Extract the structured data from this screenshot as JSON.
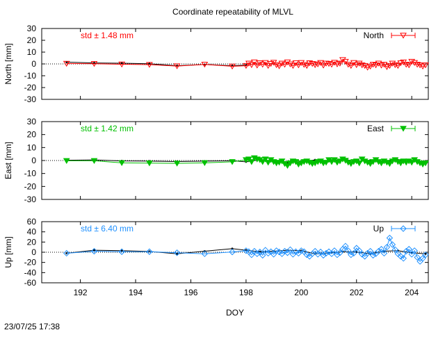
{
  "title": "Coordinate repeatability of MLVL",
  "timestamp": "23/07/25 17:38",
  "chart_data": [
    {
      "type": "scatter",
      "panel": "north",
      "ylabel": "North [mm]",
      "xlabel": "",
      "xlim": [
        190.6,
        204.6
      ],
      "ylim": [
        -30,
        30
      ],
      "yticks": [
        30,
        20,
        10,
        0,
        -10,
        -20,
        -30
      ],
      "xticks": [
        192,
        194,
        196,
        198,
        200,
        202,
        204
      ],
      "xtick_labels_shown": false,
      "std_label": "std ± 1.48 mm",
      "legend": "North",
      "legend_position": "top-right",
      "color": "#ff0000",
      "marker": "triangle-down-open",
      "zero_line": true,
      "daily": {
        "x": [
          191.5,
          192.5,
          193.5,
          194.5,
          195.5,
          196.5,
          197.5,
          198.0
        ],
        "y": [
          1.5,
          0.8,
          0.6,
          0.2,
          -1.5,
          -0.5,
          -1.5,
          -1.0
        ]
      },
      "series_values": {
        "x": [
          191.5,
          192.5,
          193.5,
          194.5,
          195.5,
          196.5,
          197.5,
          198.0,
          198.1,
          198.2,
          198.3,
          198.4,
          198.5,
          198.6,
          198.7,
          198.8,
          198.9,
          199.0,
          199.1,
          199.2,
          199.3,
          199.4,
          199.5,
          199.6,
          199.7,
          199.8,
          199.9,
          200.0,
          200.1,
          200.2,
          200.3,
          200.4,
          200.5,
          200.6,
          200.7,
          200.8,
          200.9,
          201.0,
          201.1,
          201.2,
          201.3,
          201.4,
          201.5,
          201.6,
          201.7,
          201.8,
          201.9,
          202.0,
          202.1,
          202.2,
          202.3,
          202.4,
          202.5,
          202.6,
          202.7,
          202.8,
          202.9,
          203.0,
          203.1,
          203.2,
          203.3,
          203.4,
          203.5,
          203.6,
          203.7,
          203.8,
          203.9,
          204.0,
          204.1,
          204.2,
          204.3,
          204.4,
          204.5
        ],
        "y": [
          0.3,
          0.2,
          -0.3,
          -0.6,
          -1.8,
          -0.4,
          -2.0,
          -1.5,
          0.5,
          -0.8,
          1.5,
          -1.2,
          0.8,
          -0.5,
          1.0,
          -1.5,
          0.2,
          1.2,
          -0.8,
          -1.8,
          0.5,
          -0.5,
          1.5,
          -0.2,
          -1.5,
          0.8,
          -1.0,
          1.0,
          -0.6,
          -1.5,
          0.8,
          0.2,
          -0.8,
          -0.2,
          1.0,
          -1.2,
          0.5,
          0.2,
          -0.5,
          1.2,
          -0.2,
          0.5,
          3.5,
          2.0,
          -0.5,
          -1.5,
          1.0,
          -0.8,
          0.5,
          -1.0,
          -1.5,
          -3.0,
          -2.0,
          -0.5,
          -1.0,
          0.5,
          -1.2,
          -0.5,
          -2.5,
          -1.5,
          0.5,
          -0.8,
          -1.5,
          0.8,
          1.5,
          -0.5,
          -1.0,
          2.0,
          1.0,
          -0.5,
          -1.0,
          -2.0,
          -1.0
        ]
      }
    },
    {
      "type": "scatter",
      "panel": "east",
      "ylabel": "East [mm]",
      "xlabel": "",
      "xlim": [
        190.6,
        204.6
      ],
      "ylim": [
        -30,
        30
      ],
      "yticks": [
        30,
        20,
        10,
        0,
        -10,
        -20,
        -30
      ],
      "xticks": [
        192,
        194,
        196,
        198,
        200,
        202,
        204
      ],
      "xtick_labels_shown": false,
      "std_label": "std ± 1.42 mm",
      "legend": "East",
      "legend_position": "top-right",
      "color": "#00c000",
      "marker": "triangle-down-filled",
      "zero_line": true,
      "daily": {
        "x": [
          191.5,
          192.5,
          193.5,
          194.5,
          195.5,
          196.5,
          197.5,
          198.0,
          198.5,
          199.0,
          199.5,
          200.0,
          200.5,
          201.0,
          201.5,
          202.0,
          202.5,
          203.0,
          203.5,
          204.0,
          204.5
        ],
        "y": [
          0.2,
          0.5,
          -0.3,
          -0.5,
          -0.8,
          -0.5,
          -0.2,
          -1.0,
          0.5,
          -0.5,
          -1.5,
          -1.0,
          0.5,
          -0.5,
          1.0,
          -0.5,
          0.2,
          -0.8,
          0.5,
          -0.5,
          -1.0
        ]
      },
      "series_values": {
        "x": [
          191.5,
          192.5,
          193.5,
          194.5,
          195.5,
          196.5,
          197.5,
          198.0,
          198.1,
          198.2,
          198.3,
          198.4,
          198.5,
          198.6,
          198.7,
          198.8,
          198.9,
          199.0,
          199.1,
          199.2,
          199.3,
          199.4,
          199.5,
          199.6,
          199.7,
          199.8,
          199.9,
          200.0,
          200.1,
          200.2,
          200.3,
          200.4,
          200.5,
          200.6,
          200.7,
          200.8,
          200.9,
          201.0,
          201.1,
          201.2,
          201.3,
          201.4,
          201.5,
          201.6,
          201.7,
          201.8,
          201.9,
          202.0,
          202.1,
          202.2,
          202.3,
          202.4,
          202.5,
          202.6,
          202.7,
          202.8,
          202.9,
          203.0,
          203.1,
          203.2,
          203.3,
          203.4,
          203.5,
          203.6,
          203.7,
          203.8,
          203.9,
          204.0,
          204.1,
          204.2,
          204.3,
          204.4,
          204.5
        ],
        "y": [
          -0.2,
          -0.2,
          -1.8,
          -2.0,
          -2.2,
          -1.8,
          -1.0,
          0.5,
          1.0,
          -1.0,
          2.0,
          1.0,
          0.5,
          -1.0,
          1.0,
          -1.5,
          0.5,
          -1.0,
          -2.0,
          -1.5,
          -0.5,
          -2.5,
          -4.0,
          -2.0,
          -0.5,
          -1.0,
          -3.0,
          -2.0,
          -1.0,
          -0.5,
          -1.5,
          -2.5,
          -2.0,
          -1.0,
          -0.5,
          -2.0,
          -1.5,
          0.5,
          -1.0,
          0.5,
          -1.5,
          -0.5,
          1.0,
          0.0,
          -1.5,
          -2.5,
          -1.0,
          -0.5,
          -2.0,
          1.0,
          -0.5,
          -1.5,
          -2.5,
          -1.0,
          0.5,
          -1.0,
          -2.0,
          -0.5,
          -1.5,
          -2.5,
          -0.5,
          0.5,
          -1.0,
          -2.0,
          -0.5,
          -1.5,
          -0.5,
          -1.5,
          0.5,
          -1.0,
          -2.0,
          -3.0,
          -2.0
        ]
      }
    },
    {
      "type": "scatter",
      "panel": "up",
      "ylabel": "Up [mm]",
      "xlabel": "DOY",
      "xlim": [
        190.6,
        204.6
      ],
      "ylim": [
        -60,
        60
      ],
      "yticks": [
        60,
        40,
        20,
        0,
        -20,
        -40,
        -60
      ],
      "xticks": [
        192,
        194,
        196,
        198,
        200,
        202,
        204
      ],
      "xtick_labels_shown": true,
      "std_label": "std ± 6.40 mm",
      "legend": "Up",
      "legend_position": "top-right",
      "color": "#1e90ff",
      "marker": "diamond-open",
      "zero_line": true,
      "daily": {
        "x": [
          191.5,
          192.5,
          193.5,
          194.5,
          195.5,
          196.5,
          197.5,
          198.0,
          198.5,
          199.0,
          199.5,
          200.0,
          200.5,
          201.0,
          201.5,
          202.0,
          202.5,
          203.0,
          203.5,
          204.0,
          204.5
        ],
        "y": [
          -2.0,
          4.0,
          3.0,
          1.5,
          -3.0,
          2.0,
          7.0,
          4.0,
          1.0,
          2.0,
          4.0,
          3.0,
          -3.0,
          -2.0,
          1.0,
          0.5,
          -3.0,
          2.0,
          3.0,
          -1.0,
          -3.0
        ]
      },
      "series_values": {
        "x": [
          191.5,
          192.5,
          193.5,
          194.5,
          195.5,
          196.5,
          197.5,
          198.0,
          198.1,
          198.2,
          198.3,
          198.4,
          198.5,
          198.6,
          198.7,
          198.8,
          198.9,
          199.0,
          199.1,
          199.2,
          199.3,
          199.4,
          199.5,
          199.6,
          199.7,
          199.8,
          199.9,
          200.0,
          200.1,
          200.2,
          200.3,
          200.4,
          200.5,
          200.6,
          200.7,
          200.8,
          200.9,
          201.0,
          201.1,
          201.2,
          201.3,
          201.4,
          201.5,
          201.6,
          201.7,
          201.8,
          201.9,
          202.0,
          202.1,
          202.2,
          202.3,
          202.4,
          202.5,
          202.6,
          202.7,
          202.8,
          202.9,
          203.0,
          203.1,
          203.2,
          203.3,
          203.4,
          203.5,
          203.6,
          203.7,
          203.8,
          203.9,
          204.0,
          204.1,
          204.2,
          204.3,
          204.4,
          204.5
        ],
        "y": [
          -2.0,
          2.0,
          1.0,
          1.0,
          -1.0,
          -3.0,
          0.5,
          3.0,
          1.0,
          -5.0,
          2.0,
          -3.0,
          0.5,
          -6.0,
          4.0,
          -2.0,
          1.0,
          -4.0,
          3.0,
          0.5,
          -3.0,
          2.0,
          -1.0,
          5.0,
          -4.0,
          1.0,
          -2.0,
          3.0,
          1.0,
          -5.0,
          -8.0,
          -3.0,
          2.0,
          -4.0,
          0.5,
          -6.0,
          -2.0,
          1.0,
          -3.0,
          3.0,
          -5.0,
          -1.0,
          6.0,
          12.0,
          3.0,
          -5.0,
          -2.0,
          8.0,
          3.0,
          -4.0,
          -8.0,
          -2.0,
          2.0,
          -6.0,
          -3.0,
          2.0,
          6.0,
          -2.0,
          10.0,
          28.0,
          15.0,
          5.0,
          -3.0,
          -8.0,
          -12.0,
          2.0,
          6.0,
          -4.0,
          3.0,
          -10.0,
          -18.0,
          -12.0,
          -5.0
        ]
      }
    }
  ]
}
